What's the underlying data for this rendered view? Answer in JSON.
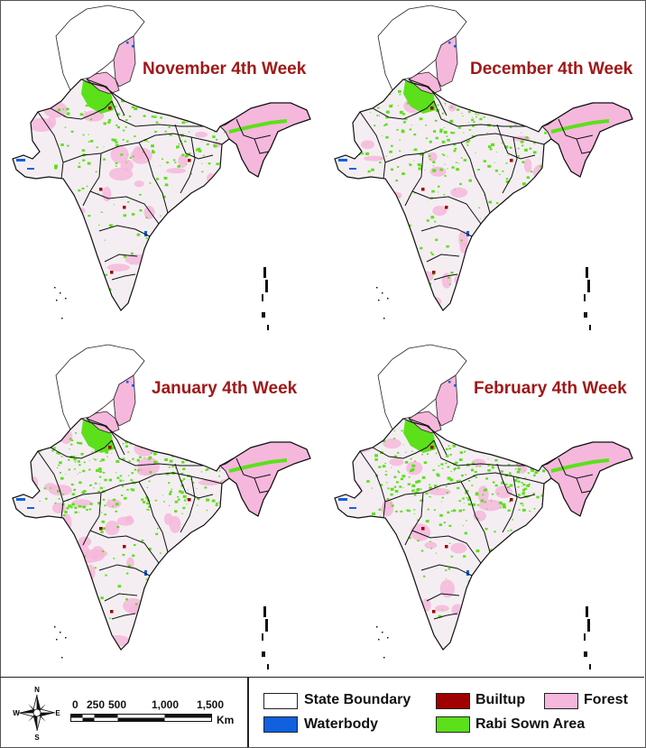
{
  "panels": [
    {
      "title": "November 4th Week",
      "greenness": 0.45
    },
    {
      "title": "December 4th Week",
      "greenness": 0.6
    },
    {
      "title": "January 4th Week",
      "greenness": 0.75
    },
    {
      "title": "February 4th Week",
      "greenness": 0.8
    }
  ],
  "legend": {
    "items": [
      {
        "label": "State Boundary",
        "color": "#ffffff"
      },
      {
        "label": "Builtup",
        "color": "#a00000"
      },
      {
        "label": "Forest",
        "color": "#f6b7dc"
      },
      {
        "label": "Waterbody",
        "color": "#1060e0"
      },
      {
        "label": "Rabi Sown Area",
        "color": "#5ce01a"
      }
    ]
  },
  "compass": {
    "n": "N",
    "s": "S",
    "e": "E",
    "w": "W"
  },
  "scale": {
    "ticks": [
      "0",
      "250",
      "500",
      "1,000",
      "1,500"
    ],
    "unit": "Km"
  }
}
